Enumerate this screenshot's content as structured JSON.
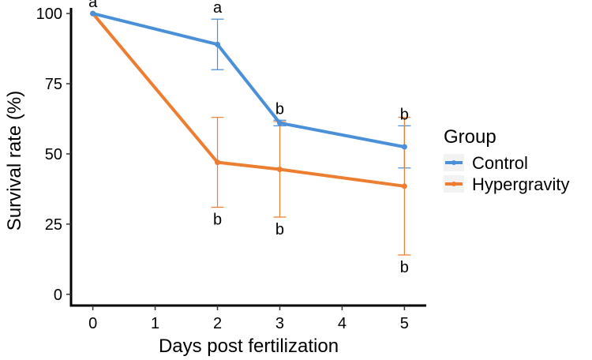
{
  "chart_data": {
    "type": "line",
    "title": "",
    "xlabel": "Days post fertilization",
    "ylabel": "Survival rate (%)",
    "x_ticks": [
      0,
      1,
      2,
      3,
      4,
      5
    ],
    "y_ticks": [
      0,
      25,
      50,
      75,
      100
    ],
    "xlim": [
      -0.35,
      5.35
    ],
    "ylim": [
      -4,
      102
    ],
    "grid": false,
    "legend": {
      "title": "Group",
      "placement": "right"
    },
    "series": [
      {
        "name": "Control",
        "color": "#4a90d9",
        "points": [
          {
            "x": 0,
            "y": 100,
            "err_low": 100,
            "err_high": 100,
            "sig": "a"
          },
          {
            "x": 2,
            "y": 89,
            "err_low": 80,
            "err_high": 98,
            "sig": "a"
          },
          {
            "x": 3,
            "y": 61,
            "err_low": 60,
            "err_high": 62,
            "sig": "b"
          },
          {
            "x": 5,
            "y": 52.5,
            "err_low": 45,
            "err_high": 60,
            "sig": "b"
          }
        ]
      },
      {
        "name": "Hypergravity",
        "color": "#ed7d31",
        "points": [
          {
            "x": 0,
            "y": 100,
            "err_low": 100,
            "err_high": 100,
            "sig": ""
          },
          {
            "x": 2,
            "y": 47,
            "err_low": 31,
            "err_high": 63,
            "sig": "b"
          },
          {
            "x": 3,
            "y": 44.5,
            "err_low": 27.5,
            "err_high": 61.5,
            "sig": "b"
          },
          {
            "x": 5,
            "y": 38.5,
            "err_low": 14,
            "err_high": 63,
            "sig": "b"
          }
        ]
      }
    ]
  }
}
